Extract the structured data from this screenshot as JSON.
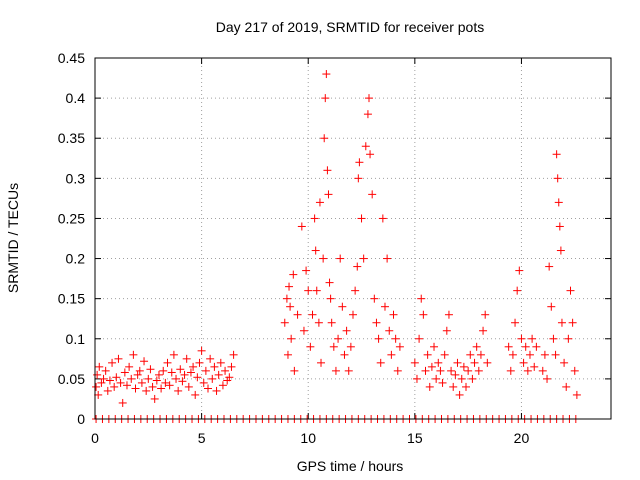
{
  "chart_data": {
    "type": "scatter",
    "title": "Day 217 of 2019, SRMTID for receiver pots",
    "xlabel": "GPS time / hours",
    "ylabel": "SRMTID / TECUs",
    "xlim": [
      0,
      24.2
    ],
    "ylim": [
      0,
      0.45
    ],
    "xticks": [
      0,
      5,
      10,
      15,
      20
    ],
    "xtick_labels": [
      "0",
      "5",
      "10",
      "15",
      "20"
    ],
    "yticks": [
      0,
      0.05,
      0.1,
      0.15,
      0.2,
      0.25,
      0.3,
      0.35,
      0.4,
      0.45
    ],
    "ytick_labels": [
      "0",
      "0.05",
      "0.1",
      "0.15",
      "0.2",
      "0.25",
      "0.3",
      "0.35",
      "0.4",
      "0.45"
    ],
    "grid": true,
    "marker": "+",
    "color": "#ff0000",
    "series": [
      {
        "points": [
          [
            0.05,
            0.04
          ],
          [
            0.1,
            0.055
          ],
          [
            0.15,
            0.03
          ],
          [
            0.2,
            0.065
          ],
          [
            0.3,
            0.045
          ],
          [
            0.4,
            0.05
          ],
          [
            0.5,
            0.06
          ],
          [
            0.6,
            0.035
          ],
          [
            0.7,
            0.048
          ],
          [
            0.8,
            0.07
          ],
          [
            0.9,
            0.04
          ],
          [
            1.0,
            0.052
          ],
          [
            1.1,
            0.075
          ],
          [
            1.2,
            0.045
          ],
          [
            1.3,
            0.02
          ],
          [
            1.4,
            0.058
          ],
          [
            1.5,
            0.042
          ],
          [
            1.6,
            0.065
          ],
          [
            1.7,
            0.05
          ],
          [
            1.8,
            0.08
          ],
          [
            1.9,
            0.038
          ],
          [
            2.0,
            0.055
          ],
          [
            2.1,
            0.06
          ],
          [
            2.2,
            0.045
          ],
          [
            2.3,
            0.072
          ],
          [
            2.4,
            0.035
          ],
          [
            2.5,
            0.05
          ],
          [
            2.6,
            0.062
          ],
          [
            2.7,
            0.04
          ],
          [
            2.8,
            0.025
          ],
          [
            2.9,
            0.048
          ],
          [
            3.0,
            0.055
          ],
          [
            3.1,
            0.038
          ],
          [
            3.2,
            0.06
          ],
          [
            3.3,
            0.045
          ],
          [
            3.4,
            0.07
          ],
          [
            3.5,
            0.042
          ],
          [
            3.6,
            0.058
          ],
          [
            3.7,
            0.08
          ],
          [
            3.8,
            0.05
          ],
          [
            3.9,
            0.035
          ],
          [
            4.0,
            0.062
          ],
          [
            4.1,
            0.047
          ],
          [
            4.2,
            0.055
          ],
          [
            4.3,
            0.075
          ],
          [
            4.4,
            0.04
          ],
          [
            4.5,
            0.058
          ],
          [
            4.6,
            0.065
          ],
          [
            4.7,
            0.03
          ],
          [
            4.8,
            0.052
          ],
          [
            4.9,
            0.07
          ],
          [
            5.0,
            0.085
          ],
          [
            5.1,
            0.045
          ],
          [
            5.2,
            0.06
          ],
          [
            5.3,
            0.038
          ],
          [
            5.4,
            0.075
          ],
          [
            5.5,
            0.05
          ],
          [
            5.6,
            0.065
          ],
          [
            5.7,
            0.035
          ],
          [
            5.8,
            0.055
          ],
          [
            5.9,
            0.07
          ],
          [
            6.0,
            0.042
          ],
          [
            6.1,
            0.06
          ],
          [
            6.2,
            0.048
          ],
          [
            6.3,
            0.052
          ],
          [
            6.4,
            0.065
          ],
          [
            6.5,
            0.08
          ],
          [
            8.9,
            0.12
          ],
          [
            9.0,
            0.15
          ],
          [
            9.05,
            0.08
          ],
          [
            9.1,
            0.165
          ],
          [
            9.15,
            0.14
          ],
          [
            9.2,
            0.1
          ],
          [
            9.3,
            0.18
          ],
          [
            9.35,
            0.06
          ],
          [
            9.5,
            0.13
          ],
          [
            9.7,
            0.24
          ],
          [
            9.8,
            0.11
          ],
          [
            9.9,
            0.185
          ],
          [
            10.0,
            0.16
          ],
          [
            10.1,
            0.09
          ],
          [
            10.2,
            0.13
          ],
          [
            10.3,
            0.25
          ],
          [
            10.35,
            0.21
          ],
          [
            10.4,
            0.16
          ],
          [
            10.5,
            0.12
          ],
          [
            10.55,
            0.27
          ],
          [
            10.6,
            0.07
          ],
          [
            10.7,
            0.2
          ],
          [
            10.75,
            0.35
          ],
          [
            10.8,
            0.4
          ],
          [
            10.85,
            0.43
          ],
          [
            10.9,
            0.31
          ],
          [
            10.95,
            0.28
          ],
          [
            11.0,
            0.17
          ],
          [
            11.05,
            0.15
          ],
          [
            11.1,
            0.12
          ],
          [
            11.2,
            0.09
          ],
          [
            11.3,
            0.06
          ],
          [
            11.4,
            0.1
          ],
          [
            11.5,
            0.2
          ],
          [
            11.6,
            0.14
          ],
          [
            11.7,
            0.08
          ],
          [
            11.8,
            0.11
          ],
          [
            11.9,
            0.06
          ],
          [
            12.0,
            0.09
          ],
          [
            12.1,
            0.13
          ],
          [
            12.2,
            0.16
          ],
          [
            12.3,
            0.19
          ],
          [
            12.35,
            0.3
          ],
          [
            12.4,
            0.32
          ],
          [
            12.5,
            0.25
          ],
          [
            12.6,
            0.2
          ],
          [
            12.7,
            0.34
          ],
          [
            12.8,
            0.38
          ],
          [
            12.85,
            0.4
          ],
          [
            12.9,
            0.33
          ],
          [
            13.0,
            0.28
          ],
          [
            13.1,
            0.15
          ],
          [
            13.2,
            0.12
          ],
          [
            13.3,
            0.1
          ],
          [
            13.4,
            0.07
          ],
          [
            13.5,
            0.25
          ],
          [
            13.6,
            0.14
          ],
          [
            13.7,
            0.2
          ],
          [
            13.8,
            0.11
          ],
          [
            13.9,
            0.08
          ],
          [
            14.0,
            0.13
          ],
          [
            14.1,
            0.1
          ],
          [
            14.2,
            0.06
          ],
          [
            14.3,
            0.09
          ],
          [
            15.0,
            0.07
          ],
          [
            15.1,
            0.05
          ],
          [
            15.2,
            0.1
          ],
          [
            15.3,
            0.15
          ],
          [
            15.4,
            0.13
          ],
          [
            15.5,
            0.06
          ],
          [
            15.6,
            0.08
          ],
          [
            15.7,
            0.04
          ],
          [
            15.8,
            0.065
          ],
          [
            15.9,
            0.09
          ],
          [
            16.0,
            0.05
          ],
          [
            16.1,
            0.07
          ],
          [
            16.2,
            0.06
          ],
          [
            16.3,
            0.045
          ],
          [
            16.4,
            0.08
          ],
          [
            16.5,
            0.11
          ],
          [
            16.6,
            0.13
          ],
          [
            16.7,
            0.06
          ],
          [
            16.8,
            0.04
          ],
          [
            16.9,
            0.055
          ],
          [
            17.0,
            0.07
          ],
          [
            17.1,
            0.03
          ],
          [
            17.2,
            0.05
          ],
          [
            17.3,
            0.065
          ],
          [
            17.4,
            0.04
          ],
          [
            17.5,
            0.06
          ],
          [
            17.6,
            0.08
          ],
          [
            17.7,
            0.05
          ],
          [
            17.8,
            0.07
          ],
          [
            17.9,
            0.09
          ],
          [
            18.0,
            0.06
          ],
          [
            18.1,
            0.08
          ],
          [
            18.2,
            0.11
          ],
          [
            18.3,
            0.13
          ],
          [
            18.4,
            0.07
          ],
          [
            19.4,
            0.09
          ],
          [
            19.5,
            0.06
          ],
          [
            19.6,
            0.08
          ],
          [
            19.7,
            0.12
          ],
          [
            19.8,
            0.16
          ],
          [
            19.9,
            0.185
          ],
          [
            20.0,
            0.1
          ],
          [
            20.1,
            0.07
          ],
          [
            20.2,
            0.09
          ],
          [
            20.3,
            0.06
          ],
          [
            20.4,
            0.08
          ],
          [
            20.5,
            0.1
          ],
          [
            20.6,
            0.065
          ],
          [
            20.7,
            0.09
          ],
          [
            21.0,
            0.06
          ],
          [
            21.1,
            0.08
          ],
          [
            21.2,
            0.05
          ],
          [
            21.3,
            0.19
          ],
          [
            21.4,
            0.14
          ],
          [
            21.5,
            0.1
          ],
          [
            21.6,
            0.08
          ],
          [
            21.65,
            0.33
          ],
          [
            21.7,
            0.3
          ],
          [
            21.75,
            0.27
          ],
          [
            21.8,
            0.24
          ],
          [
            21.85,
            0.21
          ],
          [
            21.9,
            0.12
          ],
          [
            22.0,
            0.07
          ],
          [
            22.1,
            0.04
          ],
          [
            22.2,
            0.1
          ],
          [
            22.3,
            0.16
          ],
          [
            22.4,
            0.12
          ],
          [
            22.5,
            0.06
          ],
          [
            22.6,
            0.03
          ]
        ]
      },
      {
        "points": [
          [
            0.05,
            0
          ],
          [
            0.35,
            0
          ],
          [
            0.65,
            0
          ],
          [
            0.95,
            0
          ],
          [
            1.25,
            0
          ],
          [
            1.55,
            0
          ],
          [
            1.85,
            0
          ],
          [
            2.15,
            0
          ],
          [
            2.45,
            0
          ],
          [
            2.75,
            0
          ],
          [
            3.05,
            0
          ],
          [
            3.35,
            0
          ],
          [
            3.65,
            0
          ],
          [
            3.95,
            0
          ],
          [
            4.25,
            0
          ],
          [
            4.55,
            0
          ],
          [
            4.85,
            0
          ],
          [
            5.15,
            0
          ],
          [
            5.45,
            0
          ],
          [
            5.75,
            0
          ],
          [
            6.05,
            0
          ],
          [
            6.35,
            0
          ],
          [
            6.65,
            0
          ],
          [
            6.95,
            0
          ],
          [
            7.25,
            0
          ],
          [
            7.55,
            0
          ],
          [
            7.85,
            0
          ],
          [
            8.15,
            0
          ],
          [
            8.45,
            0
          ],
          [
            8.75,
            0
          ],
          [
            9.05,
            0
          ],
          [
            9.35,
            0
          ],
          [
            9.65,
            0
          ],
          [
            9.95,
            0
          ],
          [
            10.25,
            0
          ],
          [
            10.55,
            0
          ],
          [
            10.85,
            0
          ],
          [
            11.15,
            0
          ],
          [
            11.45,
            0
          ],
          [
            11.75,
            0
          ],
          [
            12.05,
            0
          ],
          [
            12.35,
            0
          ],
          [
            12.65,
            0
          ],
          [
            12.95,
            0
          ],
          [
            13.25,
            0
          ],
          [
            13.55,
            0
          ],
          [
            13.85,
            0
          ],
          [
            14.15,
            0
          ],
          [
            14.45,
            0
          ],
          [
            14.75,
            0
          ],
          [
            15.05,
            0
          ],
          [
            15.35,
            0
          ],
          [
            15.65,
            0
          ],
          [
            15.95,
            0
          ],
          [
            16.25,
            0
          ],
          [
            16.55,
            0
          ],
          [
            16.85,
            0
          ],
          [
            17.15,
            0
          ],
          [
            17.45,
            0
          ],
          [
            17.75,
            0
          ],
          [
            18.05,
            0
          ],
          [
            18.35,
            0
          ],
          [
            18.65,
            0
          ],
          [
            18.95,
            0
          ],
          [
            19.25,
            0
          ],
          [
            19.55,
            0
          ],
          [
            19.85,
            0
          ],
          [
            20.15,
            0
          ],
          [
            20.45,
            0
          ],
          [
            20.75,
            0
          ],
          [
            21.05,
            0
          ],
          [
            21.35,
            0
          ],
          [
            21.65,
            0
          ],
          [
            21.95,
            0
          ],
          [
            22.25,
            0
          ],
          [
            22.55,
            0
          ]
        ]
      }
    ]
  }
}
